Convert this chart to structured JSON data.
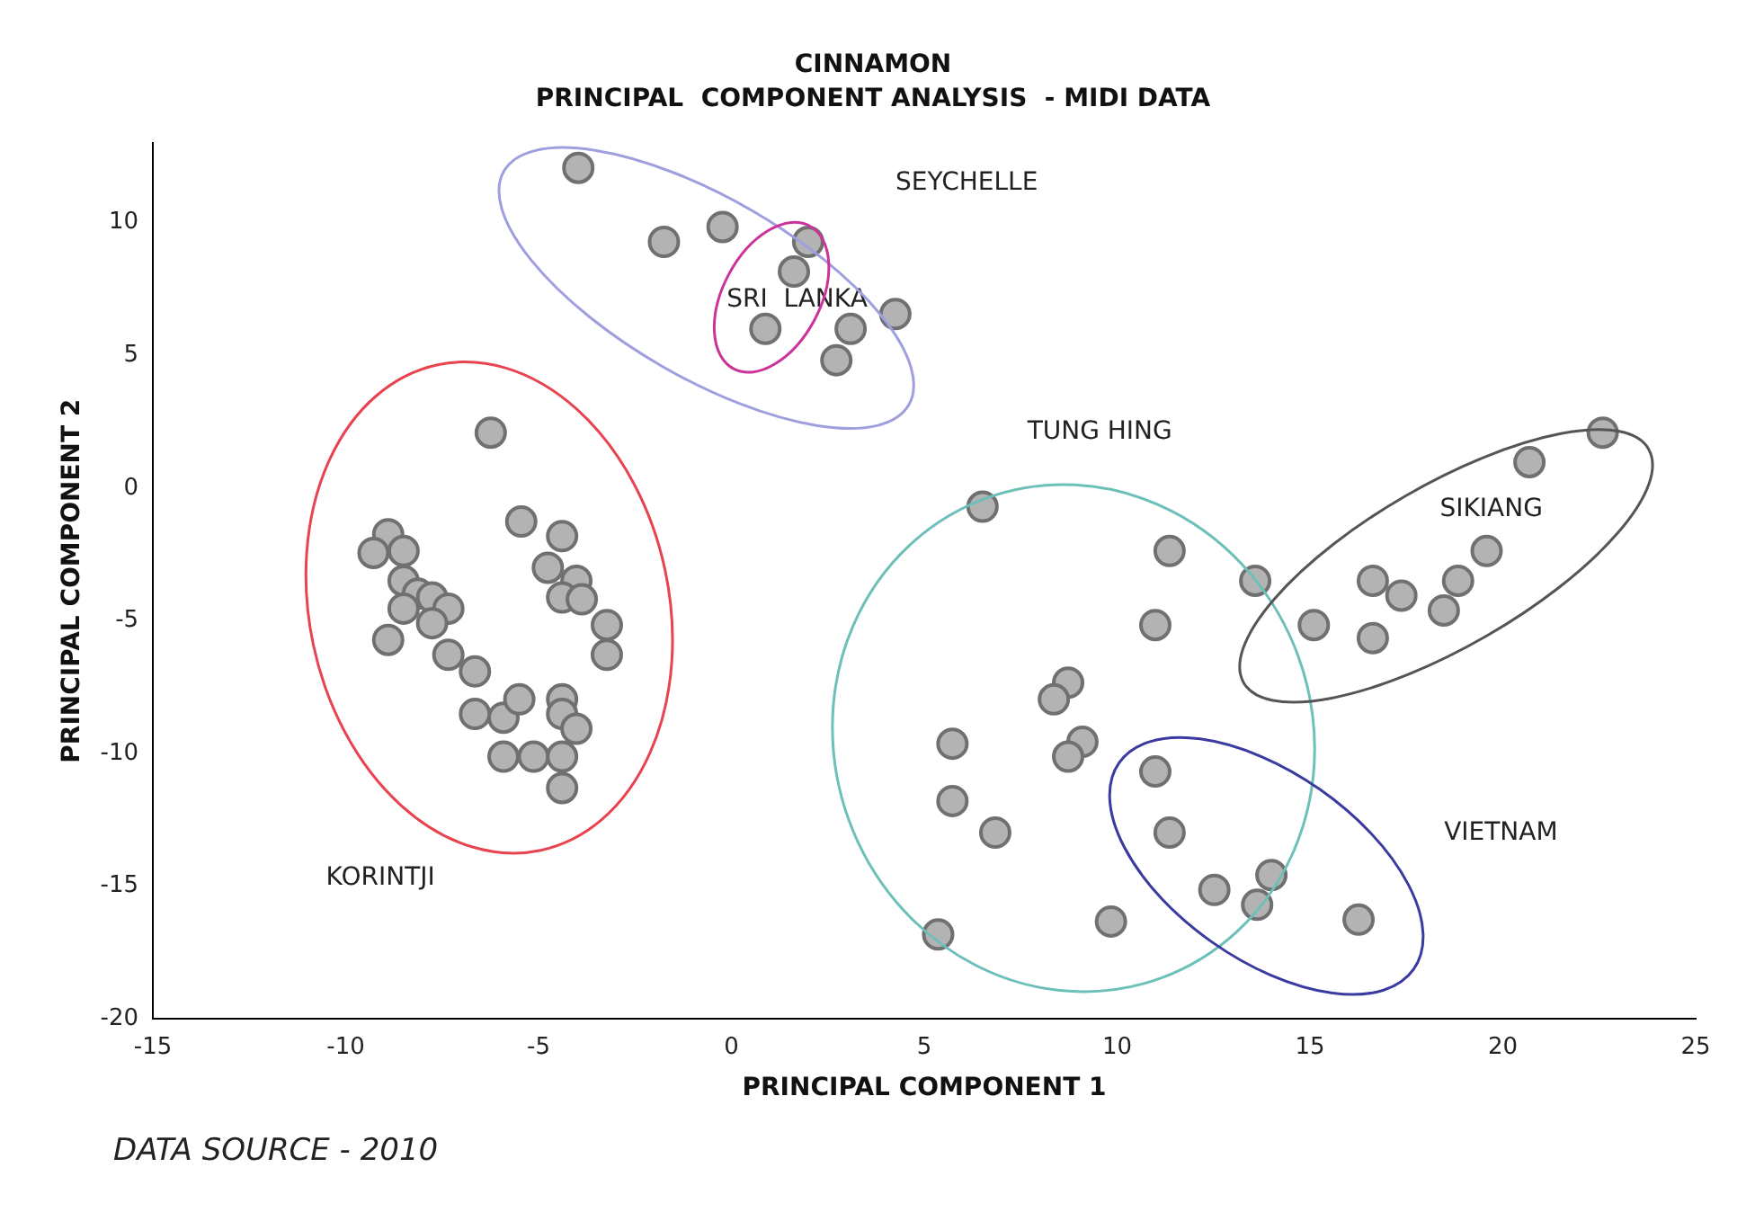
{
  "chart_data": {
    "type": "scatter",
    "title": "CINNAMON",
    "subtitle": "PRINCIPAL  COMPONENT ANALYSIS  - MIDI DATA",
    "xlabel": "PRINCIPAL COMPONENT 1",
    "ylabel": "PRINCIPAL COMPONENT 2",
    "xlim": [
      -15,
      25
    ],
    "xticks": [
      -15,
      -10,
      -5,
      0,
      5,
      10,
      15,
      20,
      25
    ],
    "ylim": [
      -20,
      13
    ],
    "yticks": [
      -20,
      -15,
      -10,
      -5,
      0,
      5,
      10
    ],
    "grid": false,
    "legend": false,
    "marker": "circle",
    "series": [
      {
        "color": "#b3b3b3",
        "x": [
          -3.97,
          -1.75,
          -0.23,
          1.99,
          1.62,
          0.88,
          3.09,
          2.72,
          4.25,
          -6.24,
          -5.45,
          -4.39,
          -8.9,
          -9.28,
          -8.5,
          -8.5,
          -8.13,
          -7.76,
          -7.34,
          -8.5,
          -7.76,
          -8.9,
          -7.34,
          -6.65,
          -4.76,
          -4.02,
          -4.39,
          -3.88,
          -3.23,
          -3.23,
          -6.65,
          -5.91,
          -5.5,
          -4.39,
          -4.39,
          -4.02,
          -5.91,
          -5.13,
          -4.39,
          -4.39,
          6.51,
          11.36,
          13.58,
          10.99,
          15.1,
          8.73,
          8.36,
          5.73,
          9.1,
          8.73,
          10.99,
          5.73,
          6.84,
          11.36,
          14.0,
          12.52,
          13.63,
          9.84,
          5.36,
          16.26,
          22.59,
          20.69,
          19.58,
          18.84,
          18.47,
          17.37,
          16.63,
          16.63
        ],
        "values": [
          12.07,
          9.28,
          9.84,
          9.28,
          8.16,
          6.0,
          6.0,
          4.82,
          6.56,
          2.09,
          -1.26,
          -1.81,
          -1.74,
          -2.44,
          -2.37,
          -3.49,
          -3.98,
          -4.12,
          -4.54,
          -4.54,
          -5.09,
          -5.72,
          -6.28,
          -6.91,
          -3.0,
          -3.49,
          -4.12,
          -4.19,
          -5.16,
          -6.28,
          -8.51,
          -8.65,
          -7.96,
          -7.96,
          -8.51,
          -9.07,
          -10.12,
          -10.12,
          -10.12,
          -11.3,
          -0.7,
          -2.37,
          -3.49,
          -5.16,
          -5.16,
          -7.33,
          -7.96,
          -9.63,
          -9.56,
          -10.12,
          -10.68,
          -11.79,
          -12.98,
          -12.98,
          -14.58,
          -15.14,
          -15.7,
          -16.33,
          -16.82,
          -16.26,
          2.09,
          0.98,
          -2.37,
          -3.49,
          -4.61,
          -4.05,
          -3.49,
          -5.65
        ]
      }
    ],
    "annotations": [
      "SEYCHELLE",
      "SRI  LANKA",
      "TUNG HING",
      "SIKIANG",
      "VIETNAM",
      "KORINTJI",
      "DATA SOURCE - 2010"
    ]
  }
}
